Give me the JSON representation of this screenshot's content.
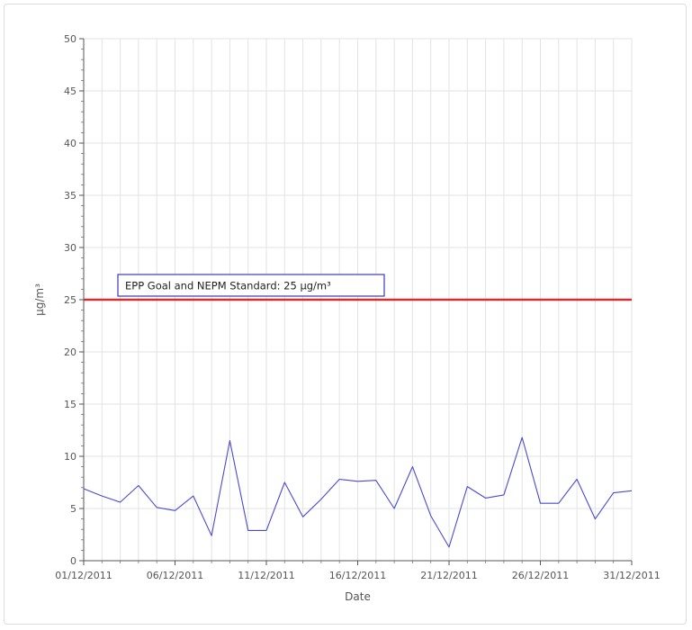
{
  "chart_data": {
    "type": "line",
    "title": "",
    "xlabel": "Date",
    "ylabel": "µg/m³",
    "ylim": [
      0,
      50
    ],
    "yticks": [
      0,
      5,
      10,
      15,
      20,
      25,
      30,
      35,
      40,
      45,
      50
    ],
    "x_tick_labels": [
      "01/12/2011",
      "06/12/2011",
      "11/12/2011",
      "16/12/2011",
      "21/12/2011",
      "26/12/2011",
      "31/12/2011"
    ],
    "xlim": [
      "01/12/2011",
      "31/12/2011"
    ],
    "grid": true,
    "series": [
      {
        "color": "#4a4ad0",
        "x": [
          "01/12/2011",
          "02/12/2011",
          "03/12/2011",
          "04/12/2011",
          "05/12/2011",
          "06/12/2011",
          "07/12/2011",
          "08/12/2011",
          "09/12/2011",
          "10/12/2011",
          "11/12/2011",
          "12/12/2011",
          "13/12/2011",
          "14/12/2011",
          "15/12/2011",
          "16/12/2011",
          "17/12/2011",
          "18/12/2011",
          "19/12/2011",
          "20/12/2011",
          "21/12/2011",
          "22/12/2011",
          "23/12/2011",
          "24/12/2011",
          "25/12/2011",
          "26/12/2011",
          "27/12/2011",
          "28/12/2011",
          "29/12/2011",
          "30/12/2011",
          "31/12/2011"
        ],
        "values": [
          6.9,
          6.2,
          5.6,
          7.2,
          5.1,
          4.8,
          6.2,
          2.4,
          11.5,
          2.9,
          2.9,
          7.5,
          4.2,
          5.9,
          7.8,
          7.6,
          7.7,
          5.0,
          9.0,
          4.3,
          1.3,
          7.1,
          6.0,
          6.3,
          11.8,
          5.5,
          5.5,
          7.8,
          4.0,
          6.5,
          6.7
        ]
      }
    ],
    "reference_line": {
      "value": 25,
      "color": "#d23030",
      "label": "EPP Goal and NEPM Standard: 25 µg/m³",
      "label_border_color": "#3a3ab8"
    }
  }
}
